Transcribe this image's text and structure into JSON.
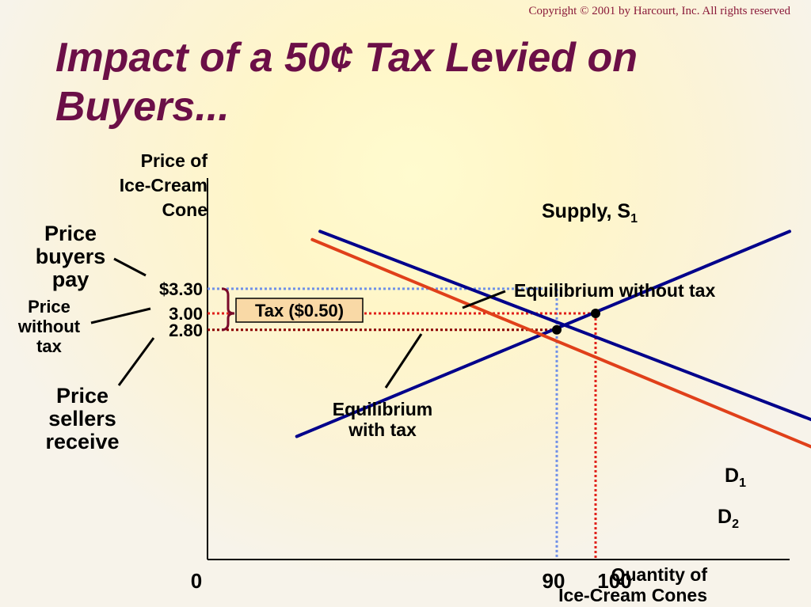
{
  "copyright": "Copyright © 2001 by Harcourt, Inc. All rights reserved",
  "title_line1": "Impact of a 50¢ Tax Levied on",
  "title_line2": "Buyers...",
  "colors": {
    "title": "#6b0f47",
    "supply": "#00008b",
    "demand_d1": "#00008b",
    "demand_d2": "#e0401a",
    "guide_blue": "#6f8fe8",
    "guide_red": "#e0201a",
    "guide_dark": "#8b0000",
    "tax_box_fill": "#f9d9a6",
    "brace": "#7a0a2a"
  },
  "chart_data": {
    "type": "line",
    "title": "Impact of a 50¢ Tax Levied on Buyers...",
    "ylabel": [
      "Price of",
      "Ice-Cream",
      "Cone"
    ],
    "xlabel": [
      "Quantity of",
      "Ice-Cream Cones"
    ],
    "origin_label": "0",
    "xlim": [
      0,
      150
    ],
    "ylim": [
      0,
      4.65
    ],
    "x_ticks": [
      {
        "value": 90,
        "label": "90"
      },
      {
        "value": 100,
        "label": "100"
      }
    ],
    "y_ticks": [
      {
        "value": 3.3,
        "label": "$3.30"
      },
      {
        "value": 3.0,
        "label": "3.00"
      },
      {
        "value": 2.8,
        "label": "2.80"
      }
    ],
    "series": [
      {
        "name": "Supply, S",
        "sub": "1",
        "color": "#00008b",
        "points": [
          [
            23,
            1.5
          ],
          [
            150,
            4.0
          ]
        ]
      },
      {
        "name": "D",
        "sub": "1",
        "color": "#00008b",
        "points": [
          [
            29,
            4.0
          ],
          [
            200,
            0.9
          ]
        ]
      },
      {
        "name": "D",
        "sub": "2",
        "color": "#e0401a",
        "points": [
          [
            27,
            3.9
          ],
          [
            195,
            0.6
          ]
        ]
      }
    ],
    "equilibria": [
      {
        "label_lines": [
          "Equilibrium without tax"
        ],
        "x": 100,
        "y": 3.0
      },
      {
        "label_lines": [
          "Equilibrium",
          "with tax"
        ],
        "x": 90,
        "y": 2.8
      }
    ],
    "tax_label": "Tax ($0.50)",
    "price_labels": {
      "buyers_pay": [
        "Price",
        "buyers",
        "pay"
      ],
      "without_tax": [
        "Price",
        "without",
        "tax"
      ],
      "sellers_receive": [
        "Price",
        "sellers",
        "receive"
      ]
    }
  }
}
